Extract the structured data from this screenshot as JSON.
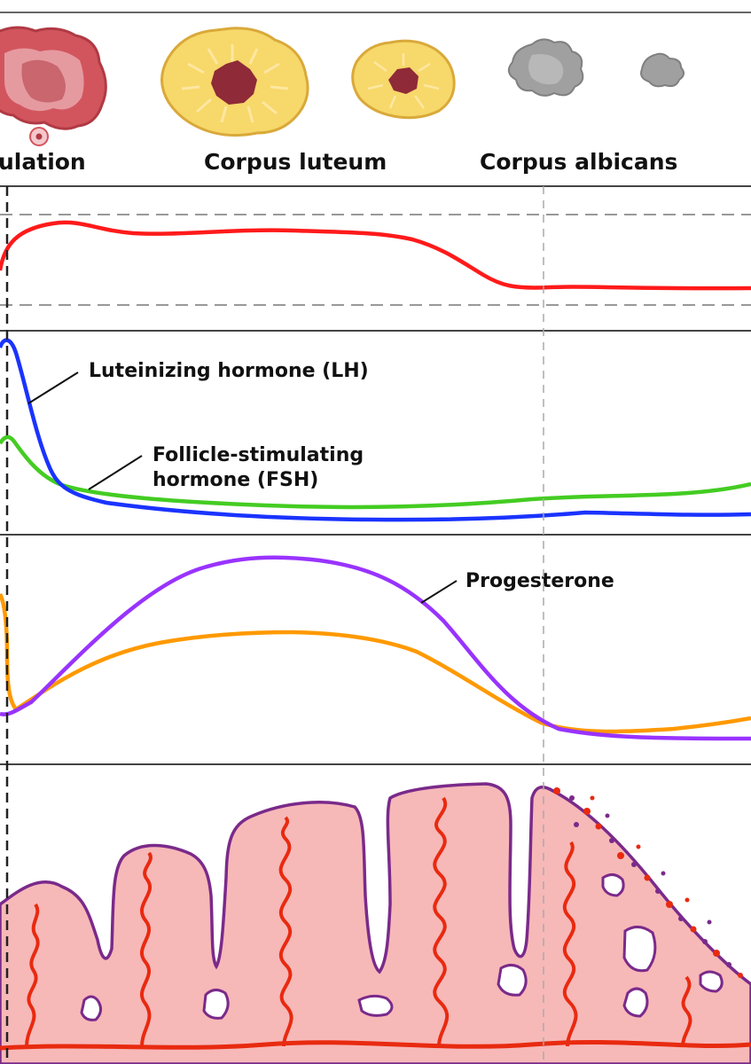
{
  "stages": {
    "ovulation": "ulation",
    "corpus_luteum": "Corpus luteum",
    "corpus_albicans": "Corpus albicans"
  },
  "hormones": {
    "lh": "Luteinizing hormone (LH)",
    "fsh_line1": "Follicle-stimulating",
    "fsh_line2": "hormone (FSH)",
    "progesterone": "Progesterone"
  },
  "colors": {
    "temperature": "#ff1a1a",
    "lh": "#1a33ff",
    "fsh": "#44cc22",
    "progesterone": "#9933ff",
    "estrogen": "#ff9900",
    "endometrium_fill": "#f7b8b8",
    "endometrium_outline": "#7a2a8a",
    "vessels": "#e82a10"
  }
}
